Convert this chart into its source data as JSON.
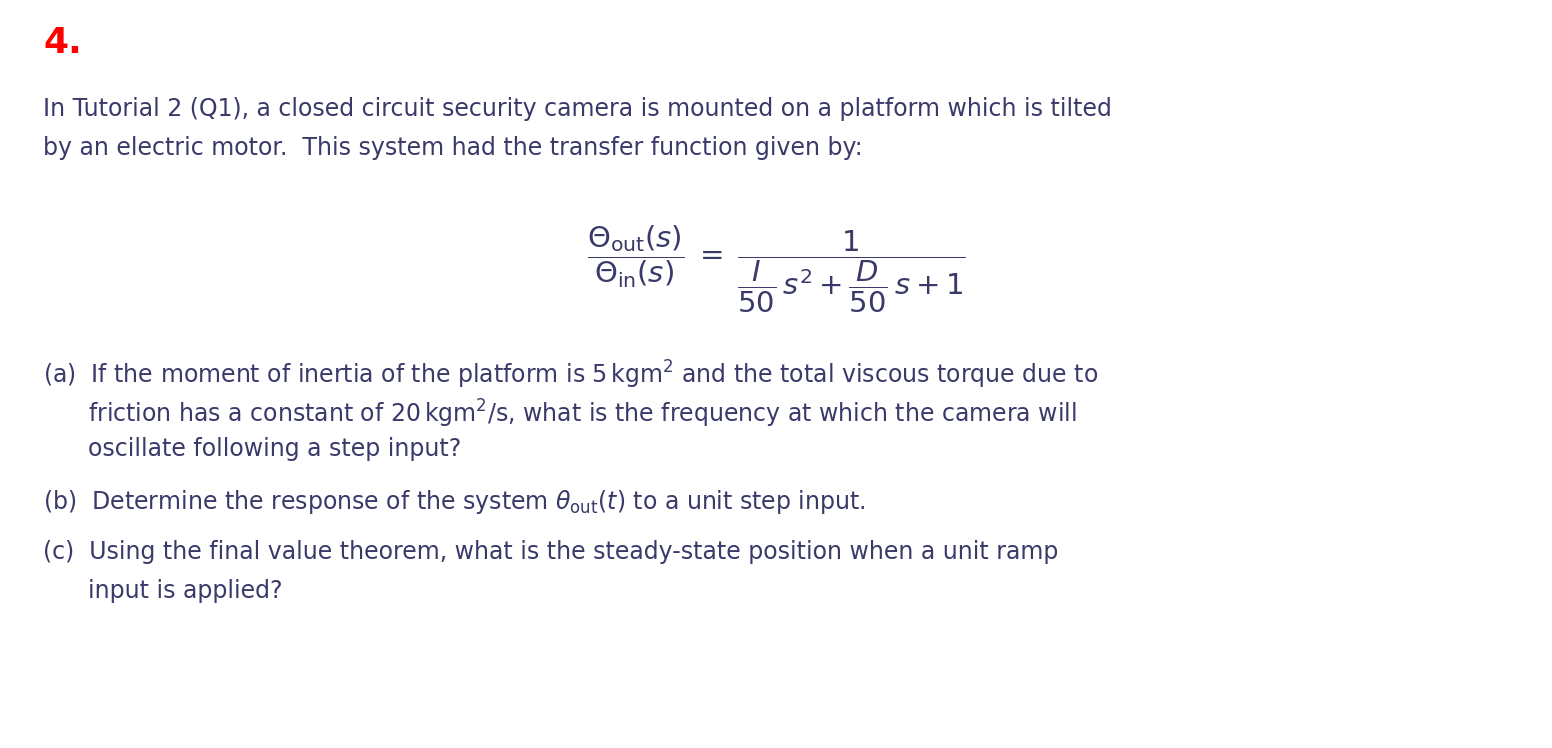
{
  "background_color": "#ffffff",
  "number_text": "4.",
  "number_color": "#ff0000",
  "number_fontsize": 26,
  "body_color": "#3a3a6a",
  "body_fontsize": 17,
  "fig_width": 15.52,
  "fig_height": 7.48,
  "dpi": 100,
  "intro_line1": "In Tutorial 2 (Q1), a closed circuit security camera is mounted on a platform which is tilted",
  "intro_line2": "by an electric motor.  This system had the transfer function given by:",
  "qa_line1": "(a)  If the moment of inertia of the platform is $5\\,\\mathrm{kgm}^2$ and the total viscous torque due to",
  "qa_line2": "      friction has a constant of $20\\,\\mathrm{kgm}^2/\\mathrm{s}$, what is the frequency at which the camera will",
  "qa_line3": "      oscillate following a step input?",
  "qb_line1": "(b)  Determine the response of the system $\\theta_{\\mathrm{out}}(t)$ to a unit step input.",
  "qc_line1": "(c)  Using the final value theorem, what is the steady-state position when a unit ramp",
  "qc_line2": "      input is applied?"
}
